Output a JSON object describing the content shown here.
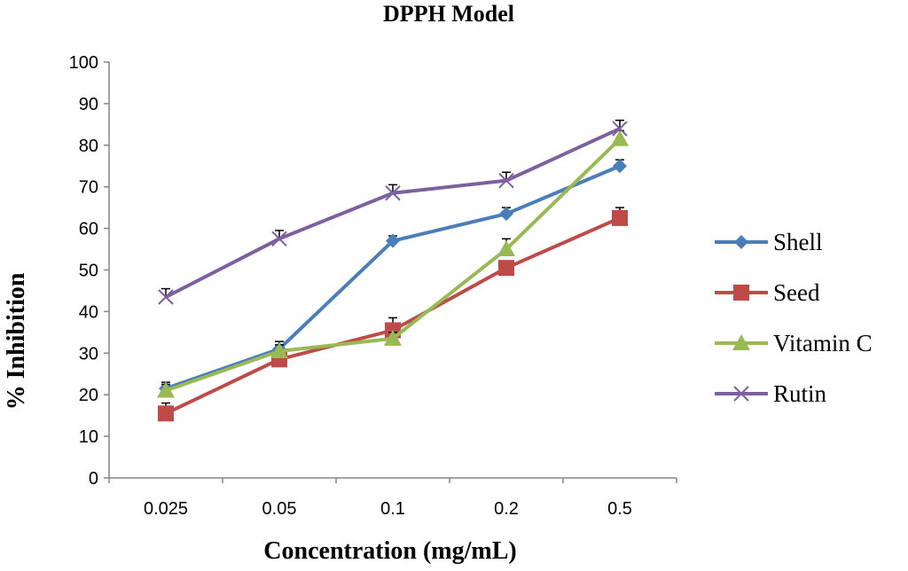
{
  "chart_data": {
    "type": "line",
    "title": "DPPH Model",
    "xlabel": "Concentration (mg/mL)",
    "ylabel": "% Inhibition",
    "categories": [
      "0.025",
      "0.05",
      "0.1",
      "0.2",
      "0.5"
    ],
    "ylim": [
      0,
      100
    ],
    "yticks": [
      "0",
      "10",
      "20",
      "30",
      "40",
      "50",
      "60",
      "70",
      "80",
      "90",
      "100"
    ],
    "grid": false,
    "legend_position": "right",
    "series": [
      {
        "name": "Shell",
        "values": [
          21.5,
          31.0,
          57.0,
          63.5,
          75.0
        ],
        "errors": [
          1.5,
          1.8,
          1.2,
          1.5,
          1.5
        ],
        "color": "#4a7ebb",
        "marker": "diamond"
      },
      {
        "name": "Seed",
        "values": [
          15.5,
          28.5,
          35.5,
          50.5,
          62.5
        ],
        "errors": [
          2.5,
          2.0,
          3.0,
          1.5,
          2.5
        ],
        "color": "#be4b48",
        "marker": "square"
      },
      {
        "name": "Vitamin C",
        "values": [
          21.0,
          30.5,
          33.5,
          55.0,
          81.5
        ],
        "errors": [
          1.5,
          1.5,
          1.5,
          2.5,
          2.0
        ],
        "color": "#98b954",
        "marker": "triangle"
      },
      {
        "name": "Rutin",
        "values": [
          43.5,
          57.5,
          68.5,
          71.5,
          84.0
        ],
        "errors": [
          2.0,
          2.0,
          2.0,
          2.0,
          2.0
        ],
        "color": "#7d60a0",
        "marker": "x"
      }
    ]
  }
}
